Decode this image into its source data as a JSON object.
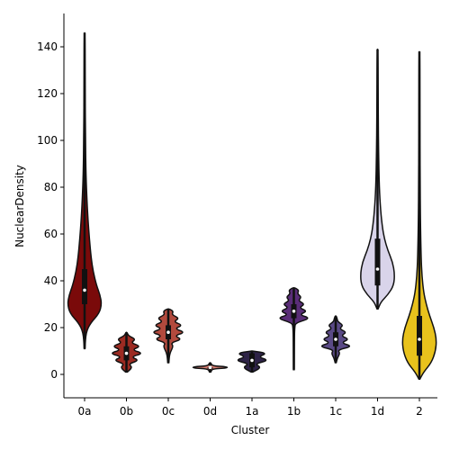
{
  "chart_data": {
    "type": "violin",
    "title": "",
    "xlabel": "Cluster",
    "ylabel": "NuclearDensity",
    "ylim": [
      -10,
      155
    ],
    "yticks": [
      0,
      20,
      40,
      60,
      80,
      100,
      120,
      140
    ],
    "grid": false,
    "categories": [
      "0a",
      "0b",
      "0c",
      "0d",
      "1a",
      "1b",
      "1c",
      "1d",
      "2"
    ],
    "series": [
      {
        "category": "0a",
        "color": "#7a0a0a",
        "min": 11,
        "max": 146,
        "q1": 30,
        "median": 36,
        "q3": 45,
        "profile": [
          [
            11,
            0.02
          ],
          [
            18,
            0.08
          ],
          [
            22,
            0.35
          ],
          [
            26,
            0.85
          ],
          [
            30,
            1.0
          ],
          [
            34,
            0.9
          ],
          [
            38,
            0.7
          ],
          [
            44,
            0.5
          ],
          [
            50,
            0.38
          ],
          [
            58,
            0.28
          ],
          [
            66,
            0.2
          ],
          [
            74,
            0.14
          ],
          [
            85,
            0.08
          ],
          [
            100,
            0.05
          ],
          [
            120,
            0.035
          ],
          [
            146,
            0.02
          ]
        ]
      },
      {
        "category": "0b",
        "color": "#9c2b22",
        "min": 1,
        "max": 18,
        "q1": 6,
        "median": 9,
        "q3": 12,
        "profile": [
          [
            1,
            0.05
          ],
          [
            3,
            0.35
          ],
          [
            4.5,
            0.12
          ],
          [
            6,
            0.75
          ],
          [
            7.5,
            0.25
          ],
          [
            9,
            1.0
          ],
          [
            10.5,
            0.3
          ],
          [
            12,
            0.85
          ],
          [
            13.5,
            0.25
          ],
          [
            15,
            0.55
          ],
          [
            16.5,
            0.12
          ],
          [
            18,
            0.03
          ]
        ]
      },
      {
        "category": "0c",
        "color": "#b24a3d",
        "min": 5,
        "max": 28,
        "q1": 15,
        "median": 18,
        "q3": 21,
        "profile": [
          [
            5,
            0.03
          ],
          [
            9,
            0.08
          ],
          [
            12,
            0.3
          ],
          [
            13.5,
            0.15
          ],
          [
            15,
            0.8
          ],
          [
            16.5,
            0.35
          ],
          [
            18,
            1.0
          ],
          [
            19.5,
            0.35
          ],
          [
            21,
            0.85
          ],
          [
            22.5,
            0.3
          ],
          [
            24,
            0.65
          ],
          [
            25.5,
            0.2
          ],
          [
            27,
            0.3
          ],
          [
            28,
            0.05
          ]
        ]
      },
      {
        "category": "0d",
        "color": "#d27a6e",
        "min": 1,
        "max": 5,
        "q1": 3,
        "median": 3,
        "q3": 3,
        "profile": [
          [
            1,
            0.04
          ],
          [
            2.4,
            0.12
          ],
          [
            2.7,
            1.0
          ],
          [
            3.3,
            1.0
          ],
          [
            3.6,
            0.12
          ],
          [
            5,
            0.04
          ]
        ]
      },
      {
        "category": "1a",
        "color": "#2e2347",
        "min": 1,
        "max": 10,
        "q1": 3,
        "median": 6,
        "q3": 9,
        "profile": [
          [
            1,
            0.05
          ],
          [
            3,
            0.55
          ],
          [
            4.5,
            0.15
          ],
          [
            6,
            1.0
          ],
          [
            7.5,
            0.35
          ],
          [
            9,
            0.9
          ],
          [
            10,
            0.05
          ]
        ]
      },
      {
        "category": "1b",
        "color": "#5a2d78",
        "min": 2,
        "max": 37,
        "q1": 24,
        "median": 27,
        "q3": 30,
        "profile": [
          [
            2,
            0.02
          ],
          [
            15,
            0.03
          ],
          [
            20,
            0.05
          ],
          [
            22,
            0.1
          ],
          [
            24,
            1.0
          ],
          [
            25.5,
            0.3
          ],
          [
            27,
            0.8
          ],
          [
            28.5,
            0.3
          ],
          [
            30,
            0.65
          ],
          [
            31.5,
            0.25
          ],
          [
            33,
            0.45
          ],
          [
            34.5,
            0.2
          ],
          [
            36,
            0.3
          ],
          [
            37,
            0.05
          ]
        ]
      },
      {
        "category": "1c",
        "color": "#5a4a86",
        "min": 5,
        "max": 25,
        "q1": 12,
        "median": 15,
        "q3": 18,
        "profile": [
          [
            5,
            0.03
          ],
          [
            7,
            0.1
          ],
          [
            9,
            0.25
          ],
          [
            10.5,
            0.12
          ],
          [
            12,
            1.0
          ],
          [
            13.5,
            0.3
          ],
          [
            15,
            0.8
          ],
          [
            16.5,
            0.3
          ],
          [
            18,
            0.65
          ],
          [
            19.5,
            0.2
          ],
          [
            21,
            0.45
          ],
          [
            22.5,
            0.12
          ],
          [
            24,
            0.08
          ],
          [
            25,
            0.02
          ]
        ]
      },
      {
        "category": "1d",
        "color": "#d9d4ea",
        "min": 28,
        "max": 139,
        "q1": 38,
        "median": 45,
        "q3": 58,
        "profile": [
          [
            28,
            0.03
          ],
          [
            31,
            0.2
          ],
          [
            34,
            0.6
          ],
          [
            38,
            0.95
          ],
          [
            43,
            1.0
          ],
          [
            48,
            0.88
          ],
          [
            53,
            0.6
          ],
          [
            58,
            0.4
          ],
          [
            63,
            0.28
          ],
          [
            70,
            0.18
          ],
          [
            80,
            0.1
          ],
          [
            95,
            0.06
          ],
          [
            110,
            0.04
          ],
          [
            139,
            0.02
          ]
        ]
      },
      {
        "category": "2",
        "color": "#e8c21c",
        "min": -2,
        "max": 138,
        "q1": 8,
        "median": 15,
        "q3": 25,
        "profile": [
          [
            -2,
            0.03
          ],
          [
            1,
            0.25
          ],
          [
            5,
            0.7
          ],
          [
            10,
            0.95
          ],
          [
            15,
            1.0
          ],
          [
            20,
            0.85
          ],
          [
            25,
            0.6
          ],
          [
            30,
            0.4
          ],
          [
            35,
            0.25
          ],
          [
            42,
            0.15
          ],
          [
            50,
            0.1
          ],
          [
            65,
            0.06
          ],
          [
            85,
            0.04
          ],
          [
            110,
            0.03
          ],
          [
            138,
            0.02
          ]
        ]
      }
    ]
  }
}
